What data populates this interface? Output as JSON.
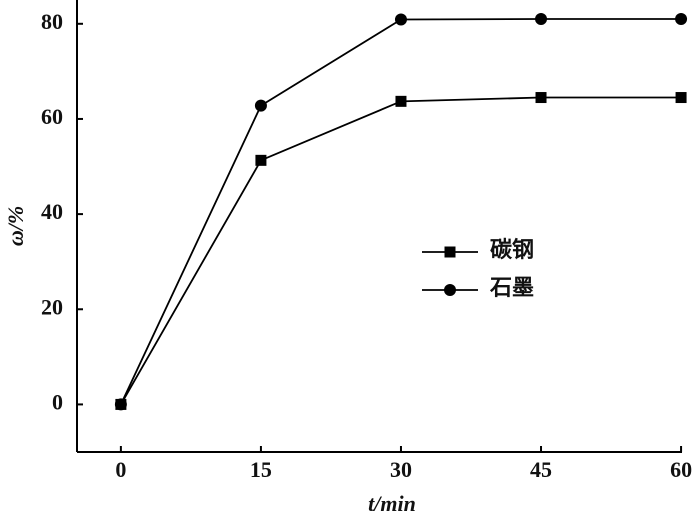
{
  "chart_data": {
    "type": "line",
    "x": [
      0,
      15,
      30,
      45,
      60
    ],
    "series": [
      {
        "name": "碳钢",
        "color": "#000000",
        "marker": "square",
        "values": [
          0,
          51.3,
          63.7,
          64.5,
          64.5
        ]
      },
      {
        "name": "石墨",
        "color": "#000000",
        "marker": "circle",
        "values": [
          0,
          62.8,
          80.9,
          81,
          81
        ]
      }
    ],
    "xlabel": "t/min",
    "ylabel": "ω/%",
    "xlim": [
      -4.7,
      60.1
    ],
    "ylim": [
      -10,
      85
    ],
    "xticks": [
      0,
      15,
      30,
      45,
      60
    ],
    "yticks": [
      0,
      20,
      40,
      60,
      80
    ],
    "grid": false,
    "legend": "center"
  }
}
